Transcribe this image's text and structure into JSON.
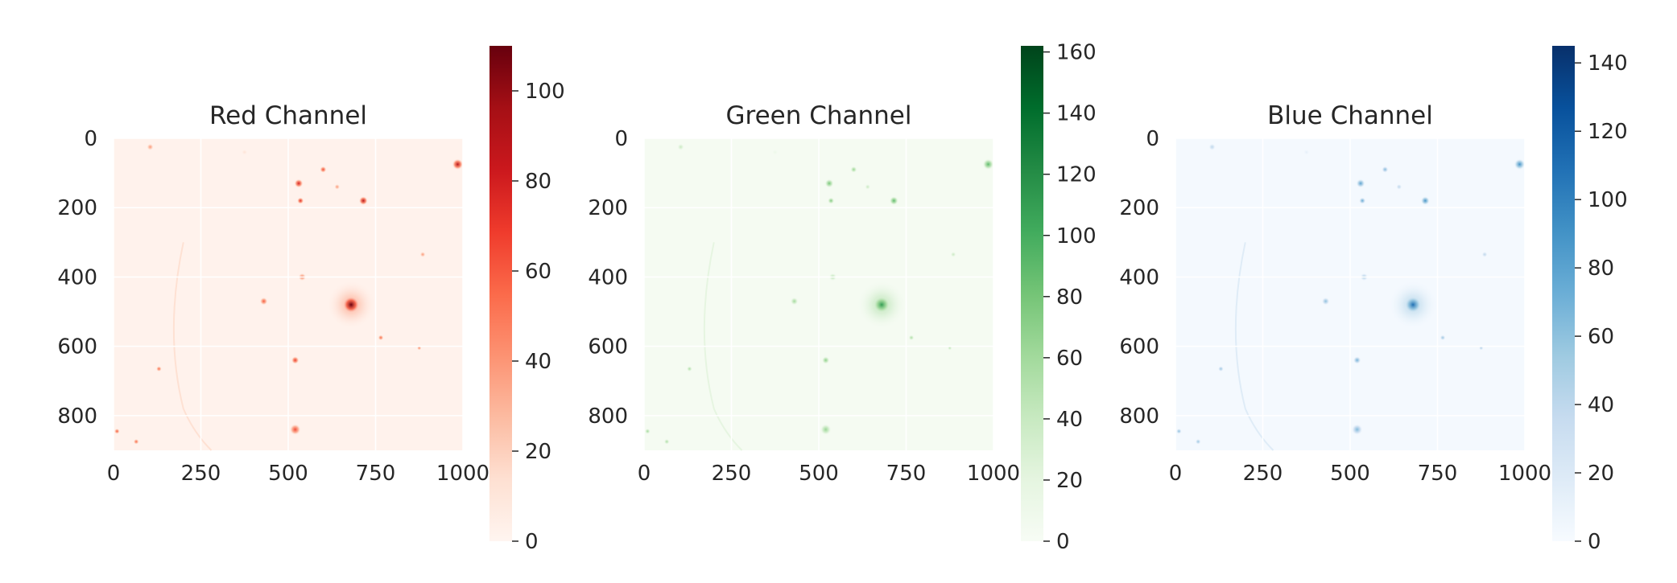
{
  "chart_data": [
    {
      "type": "heatmap",
      "title": "Red Channel",
      "colormap": "Reds",
      "color_low": "#fff5f0",
      "color_high": "#67000d",
      "color_stops": [
        "#fff5f0",
        "#fee0d2",
        "#fcbba1",
        "#fc9272",
        "#fb6a4a",
        "#ef3b2c",
        "#cb181d",
        "#a50f15",
        "#67000d"
      ],
      "xlim": [
        0,
        1000
      ],
      "ylim": [
        900,
        0
      ],
      "xticks": [
        "0",
        "250",
        "500",
        "750",
        "1000"
      ],
      "xtick_values": [
        0,
        250,
        500,
        750,
        1000
      ],
      "yticks": [
        "0",
        "200",
        "400",
        "600",
        "800"
      ],
      "ytick_values": [
        0,
        200,
        400,
        600,
        800
      ],
      "colorbar_range": [
        0,
        110
      ],
      "colorbar_ticks": [
        "0",
        "20",
        "40",
        "60",
        "80",
        "100"
      ],
      "colorbar_tick_values": [
        0,
        20,
        40,
        60,
        80,
        100
      ],
      "grid": true
    },
    {
      "type": "heatmap",
      "title": "Green Channel",
      "colormap": "Greens",
      "color_low": "#f7fcf5",
      "color_high": "#00441b",
      "color_stops": [
        "#f7fcf5",
        "#e5f5e0",
        "#c7e9c0",
        "#a1d99b",
        "#74c476",
        "#41ab5d",
        "#238b45",
        "#006d2c",
        "#00441b"
      ],
      "xlim": [
        0,
        1000
      ],
      "ylim": [
        900,
        0
      ],
      "xticks": [
        "0",
        "250",
        "500",
        "750",
        "1000"
      ],
      "xtick_values": [
        0,
        250,
        500,
        750,
        1000
      ],
      "yticks": [
        "0",
        "200",
        "400",
        "600",
        "800"
      ],
      "ytick_values": [
        0,
        200,
        400,
        600,
        800
      ],
      "colorbar_range": [
        0,
        162
      ],
      "colorbar_ticks": [
        "0",
        "20",
        "40",
        "60",
        "80",
        "100",
        "120",
        "140",
        "160"
      ],
      "colorbar_tick_values": [
        0,
        20,
        40,
        60,
        80,
        100,
        120,
        140,
        160
      ],
      "grid": true
    },
    {
      "type": "heatmap",
      "title": "Blue Channel",
      "colormap": "Blues",
      "color_low": "#f7fbff",
      "color_high": "#08306b",
      "color_stops": [
        "#f7fbff",
        "#deebf7",
        "#c6dbef",
        "#9ecae1",
        "#6baed6",
        "#4292c6",
        "#2171b5",
        "#08519c",
        "#08306b"
      ],
      "xlim": [
        0,
        1000
      ],
      "ylim": [
        900,
        0
      ],
      "xticks": [
        "0",
        "250",
        "500",
        "750",
        "1000"
      ],
      "xtick_values": [
        0,
        250,
        500,
        750,
        1000
      ],
      "yticks": [
        "0",
        "200",
        "400",
        "600",
        "800"
      ],
      "ytick_values": [
        0,
        200,
        400,
        600,
        800
      ],
      "colorbar_range": [
        0,
        145
      ],
      "colorbar_ticks": [
        "0",
        "20",
        "40",
        "60",
        "80",
        "100",
        "120",
        "140"
      ],
      "colorbar_tick_values": [
        0,
        20,
        40,
        60,
        80,
        100,
        120,
        140
      ],
      "grid": true
    }
  ],
  "sources": [
    {
      "x": 680,
      "y": 480,
      "r": 15,
      "peak": 110,
      "halo": 70
    },
    {
      "x": 530,
      "y": 130,
      "r": 8,
      "peak": 80
    },
    {
      "x": 535,
      "y": 180,
      "r": 6,
      "peak": 75
    },
    {
      "x": 600,
      "y": 90,
      "r": 6,
      "peak": 65
    },
    {
      "x": 715,
      "y": 180,
      "r": 8,
      "peak": 90
    },
    {
      "x": 985,
      "y": 75,
      "r": 10,
      "peak": 90
    },
    {
      "x": 430,
      "y": 470,
      "r": 7,
      "peak": 60
    },
    {
      "x": 540,
      "y": 400,
      "r": 7,
      "peak": 50
    },
    {
      "x": 765,
      "y": 575,
      "r": 5,
      "peak": 55
    },
    {
      "x": 885,
      "y": 335,
      "r": 5,
      "peak": 40
    },
    {
      "x": 875,
      "y": 605,
      "r": 4,
      "peak": 45
    },
    {
      "x": 520,
      "y": 640,
      "r": 7,
      "peak": 70
    },
    {
      "x": 130,
      "y": 665,
      "r": 5,
      "peak": 55
    },
    {
      "x": 520,
      "y": 840,
      "r": 10,
      "peak": 65
    },
    {
      "x": 10,
      "y": 845,
      "r": 5,
      "peak": 60
    },
    {
      "x": 65,
      "y": 875,
      "r": 5,
      "peak": 55
    },
    {
      "x": 105,
      "y": 25,
      "r": 6,
      "peak": 40
    },
    {
      "x": 640,
      "y": 140,
      "r": 5,
      "peak": 40
    },
    {
      "x": 375,
      "y": 40,
      "r": 5,
      "peak": 12
    }
  ]
}
